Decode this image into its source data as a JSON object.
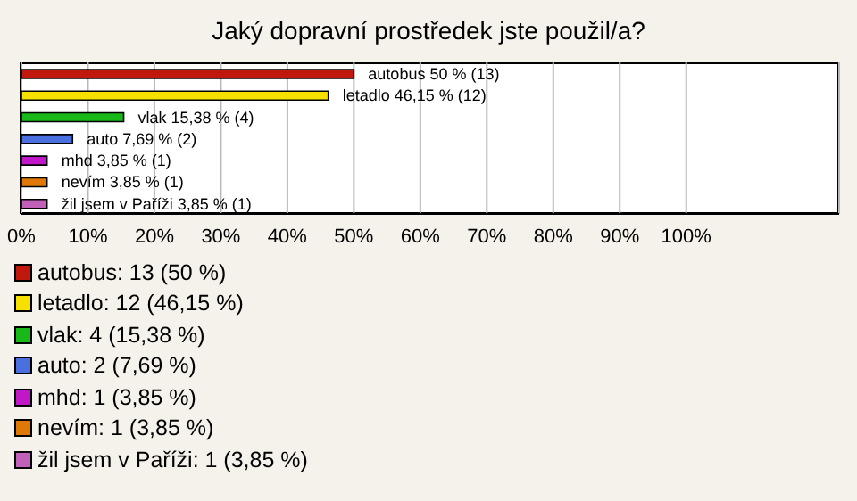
{
  "chart_data": {
    "type": "bar",
    "orientation": "horizontal",
    "title": "Jaký dopravní prostředek jste použil/a?",
    "categories": [
      "autobus",
      "letadlo",
      "vlak",
      "auto",
      "mhd",
      "nevím",
      "žil jsem v Paříži"
    ],
    "values": [
      50,
      46.15,
      15.38,
      7.69,
      3.85,
      3.85,
      3.85
    ],
    "colors": [
      "#c0180c",
      "#f5e000",
      "#18b818",
      "#4a70e0",
      "#c018c8",
      "#e07808",
      "#c060b8"
    ],
    "value_labels": [
      "50 % (13)",
      "46,15 % (12)",
      "15,38 % (4)",
      "7,69 % (2)",
      "3,85 % (1)",
      "3,85 % (1)",
      "3,85 % (1)"
    ],
    "xlim": [
      0,
      123
    ],
    "xticks": [
      {
        "value": 0,
        "label": "0%"
      },
      {
        "value": 10,
        "label": "10%"
      },
      {
        "value": 20,
        "label": "20%"
      },
      {
        "value": 30,
        "label": "30%"
      },
      {
        "value": 40,
        "label": "40%"
      },
      {
        "value": 50,
        "label": "50%"
      },
      {
        "value": 60,
        "label": "60%"
      },
      {
        "value": 70,
        "label": "70%"
      },
      {
        "value": 80,
        "label": "80%"
      },
      {
        "value": 90,
        "label": "90%"
      },
      {
        "value": 100,
        "label": "100%"
      }
    ],
    "grid": "x",
    "tick_labels": "x",
    "annotations": [
      "autobus: 13 (50 %)",
      "letadlo: 12 (46,15 %)",
      "vlak: 4 (15,38 %)",
      "auto: 2 (7,69 %)",
      "mhd: 1 (3,85 %)",
      "nevím: 1 (3,85 %)",
      "žil jsem v Paříži: 1 (3,85 %)"
    ]
  }
}
